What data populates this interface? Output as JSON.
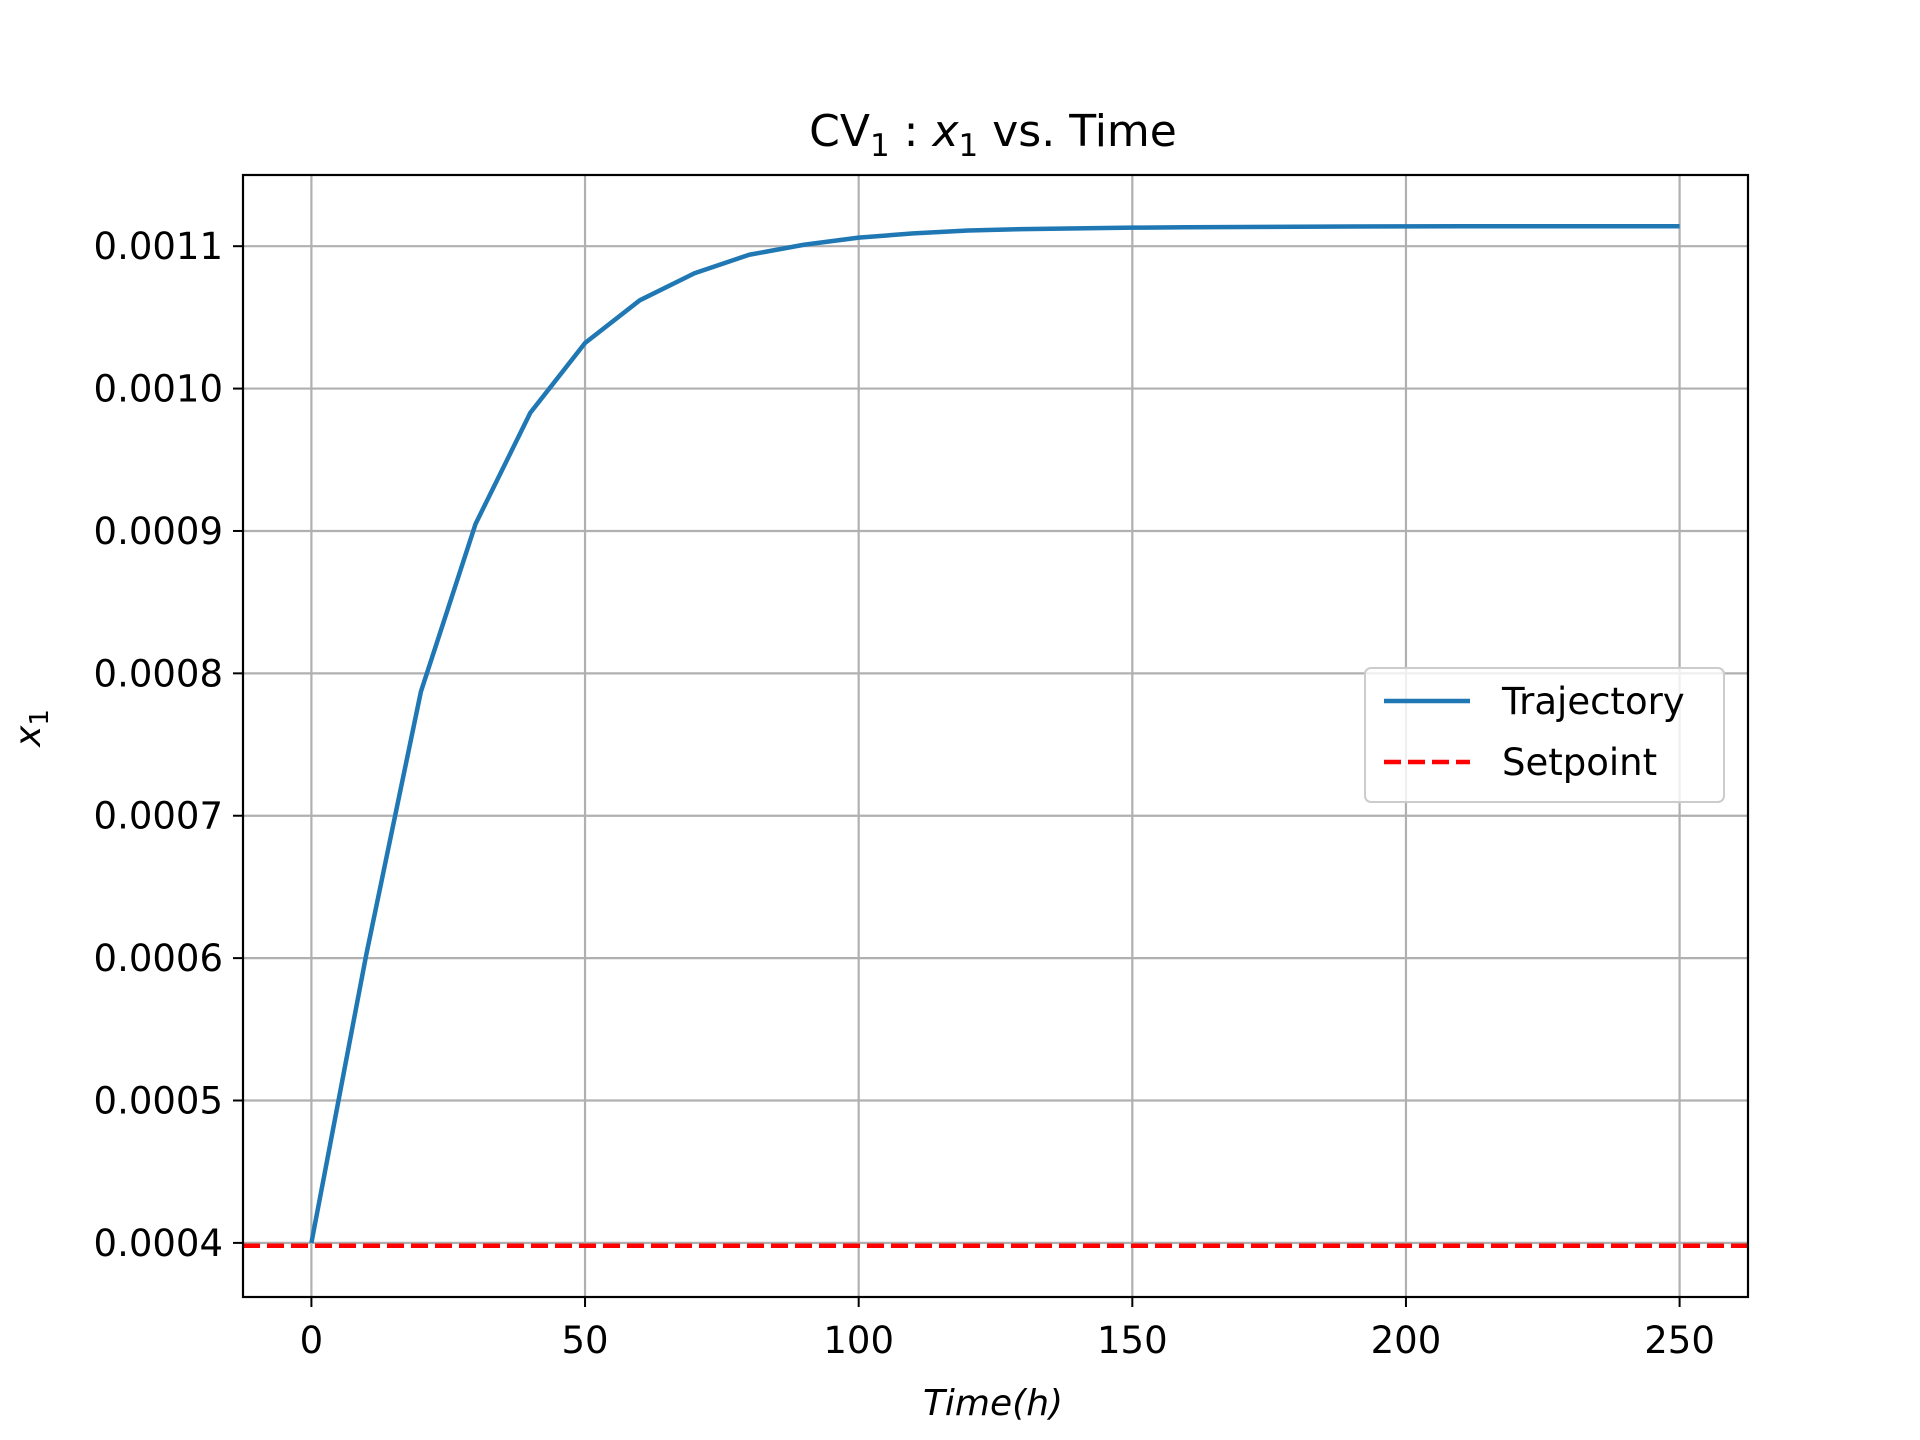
{
  "chart_data": {
    "type": "line",
    "title": {
      "prefix": "CV",
      "prefix_sub": "1",
      "sep": " : ",
      "var": "x",
      "var_sub": "1",
      "suffix": " vs.  Time"
    },
    "xlabel": {
      "main": "Time",
      "paren": "(h)"
    },
    "ylabel": {
      "var": "x",
      "sub": "1"
    },
    "xlim": [
      -12.5,
      262.5
    ],
    "ylim": [
      0.000362,
      0.00115
    ],
    "xticks": [
      0,
      50,
      100,
      150,
      200,
      250
    ],
    "xtick_labels": [
      "0",
      "50",
      "100",
      "150",
      "200",
      "250"
    ],
    "yticks": [
      0.0004,
      0.0005,
      0.0006,
      0.0007,
      0.0008,
      0.0009,
      0.001,
      0.0011
    ],
    "ytick_labels": [
      "0.0004",
      "0.0005",
      "0.0006",
      "0.0007",
      "0.0008",
      "0.0009",
      "0.0010",
      "0.0011"
    ],
    "grid": true,
    "legend_position": "center-right",
    "series": [
      {
        "name": "Trajectory",
        "color": "#1f77b4",
        "style": "solid",
        "x": [
          0,
          10,
          20,
          30,
          40,
          50,
          60,
          70,
          80,
          90,
          100,
          110,
          120,
          130,
          140,
          150,
          160,
          170,
          180,
          190,
          200,
          210,
          220,
          230,
          240,
          250
        ],
        "y": [
          0.0004,
          0.000602,
          0.000787,
          0.000905,
          0.000983,
          0.001032,
          0.001062,
          0.001081,
          0.001094,
          0.001101,
          0.001106,
          0.001109,
          0.001111,
          0.001112,
          0.0011125,
          0.001113,
          0.0011133,
          0.0011135,
          0.0011137,
          0.0011138,
          0.0011139,
          0.001114,
          0.001114,
          0.001114,
          0.001114,
          0.001114
        ]
      },
      {
        "name": "Setpoint",
        "color": "#ff0000",
        "style": "dashed",
        "x": [
          -12.5,
          262.5
        ],
        "y": [
          0.000398,
          0.000398
        ]
      }
    ]
  }
}
